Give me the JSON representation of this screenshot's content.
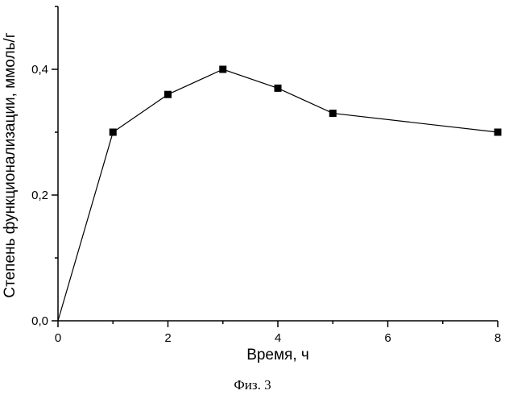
{
  "chart_data": {
    "type": "line",
    "xlabel": "Время, ч",
    "ylabel": "Степень функционализации, ммоль/г",
    "x": [
      0,
      1,
      2,
      3,
      4,
      5,
      8
    ],
    "series": [
      {
        "values": [
          0.0,
          0.3,
          0.36,
          0.4,
          0.37,
          0.33,
          0.3
        ]
      }
    ],
    "xlim": [
      0,
      8
    ],
    "ylim": [
      0,
      0.5
    ],
    "xticks": [
      "0",
      "2",
      "4",
      "6",
      "8"
    ],
    "xtick_values": [
      0,
      2,
      4,
      6,
      8
    ],
    "yticks": [
      "0,0",
      "0,2",
      "0,4"
    ],
    "ytick_values": [
      0,
      0.2,
      0.4
    ],
    "marker": "square",
    "line_color": "#000000",
    "grid": false
  },
  "caption": "Физ. 3"
}
